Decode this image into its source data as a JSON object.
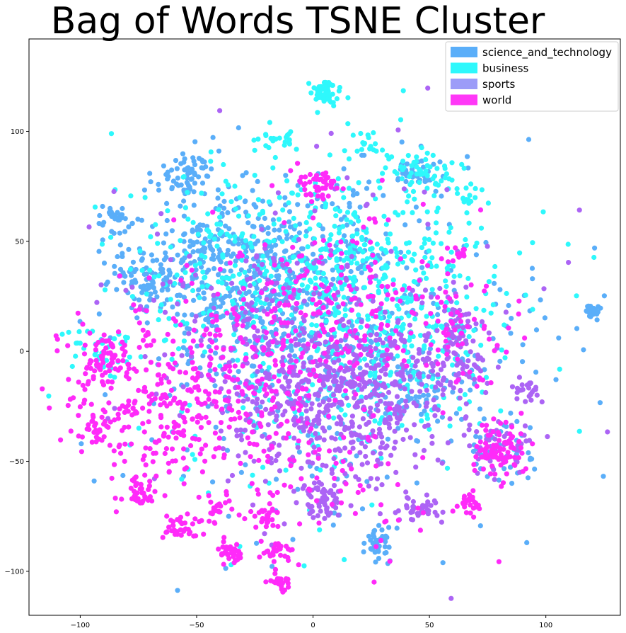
{
  "chart_data": {
    "type": "scatter",
    "title": "Bag of Words TSNE Cluster",
    "xlabel": "",
    "ylabel": "",
    "xlim": [
      -122,
      132
    ],
    "ylim": [
      -120,
      142
    ],
    "xticks": [
      -100,
      -50,
      0,
      50,
      100
    ],
    "yticks": [
      -100,
      -50,
      0,
      50,
      100
    ],
    "grid": false,
    "legend_position": "top-right",
    "series": [
      {
        "name": "science_and_technology",
        "color": "#5aaef9",
        "clusters": [
          {
            "cx": -55,
            "cy": 78,
            "sx": 7,
            "sy": 7,
            "n": 70
          },
          {
            "cx": -84,
            "cy": 60,
            "sx": 4,
            "sy": 3,
            "n": 35
          },
          {
            "cx": -63,
            "cy": 32,
            "sx": 7,
            "sy": 8,
            "n": 70
          },
          {
            "cx": -45,
            "cy": 48,
            "sx": 6,
            "sy": 6,
            "n": 55
          },
          {
            "cx": -80,
            "cy": 35,
            "sx": 6,
            "sy": 6,
            "n": 40
          },
          {
            "cx": -35,
            "cy": 25,
            "sx": 15,
            "sy": 20,
            "n": 190
          },
          {
            "cx": 0,
            "cy": 10,
            "sx": 30,
            "sy": 25,
            "n": 260
          },
          {
            "cx": 120,
            "cy": 18,
            "sx": 1.5,
            "sy": 1.5,
            "n": 28
          },
          {
            "cx": 28,
            "cy": -88,
            "sx": 3,
            "sy": 4,
            "n": 45
          },
          {
            "cx": 42,
            "cy": -18,
            "sx": 9,
            "sy": 8,
            "n": 60
          },
          {
            "cx": 5,
            "cy": 58,
            "sx": 20,
            "sy": 15,
            "n": 90
          },
          {
            "cx": 45,
            "cy": 82,
            "sx": 5,
            "sy": 4,
            "n": 35
          },
          {
            "cx": -15,
            "cy": 40,
            "sx": 15,
            "sy": 15,
            "n": 80
          },
          {
            "cx": 10,
            "cy": 0,
            "sx": 55,
            "sy": 45,
            "n": 220
          },
          {
            "cx": 80,
            "cy": -45,
            "sx": 8,
            "sy": 8,
            "n": 35
          }
        ]
      },
      {
        "name": "business",
        "color": "#2ef8fc",
        "clusters": [
          {
            "cx": 5,
            "cy": 118,
            "sx": 3,
            "sy": 3,
            "n": 60
          },
          {
            "cx": -15,
            "cy": 97,
            "sx": 5,
            "sy": 3,
            "n": 25
          },
          {
            "cx": 25,
            "cy": 93,
            "sx": 5,
            "sy": 5,
            "n": 20
          },
          {
            "cx": 45,
            "cy": 80,
            "sx": 8,
            "sy": 6,
            "n": 55
          },
          {
            "cx": 67,
            "cy": 70,
            "sx": 3,
            "sy": 3,
            "n": 15
          },
          {
            "cx": 20,
            "cy": 40,
            "sx": 28,
            "sy": 22,
            "n": 280
          },
          {
            "cx": -30,
            "cy": 40,
            "sx": 20,
            "sy": 20,
            "n": 150
          },
          {
            "cx": 30,
            "cy": 5,
            "sx": 25,
            "sy": 20,
            "n": 180
          },
          {
            "cx": -90,
            "cy": 0,
            "sx": 8,
            "sy": 6,
            "n": 40
          },
          {
            "cx": 5,
            "cy": 5,
            "sx": 50,
            "sy": 40,
            "n": 240
          }
        ]
      },
      {
        "name": "sports",
        "color": "#ac64f5",
        "clusters": [
          {
            "cx": 10,
            "cy": -25,
            "sx": 22,
            "sy": 18,
            "n": 320
          },
          {
            "cx": 30,
            "cy": -10,
            "sx": 18,
            "sy": 15,
            "n": 150
          },
          {
            "cx": 5,
            "cy": -68,
            "sx": 4,
            "sy": 5,
            "n": 60
          },
          {
            "cx": 45,
            "cy": -72,
            "sx": 4,
            "sy": 3,
            "n": 40
          },
          {
            "cx": 92,
            "cy": -18,
            "sx": 3,
            "sy": 3,
            "n": 25
          },
          {
            "cx": 62,
            "cy": 12,
            "sx": 6,
            "sy": 6,
            "n": 35
          },
          {
            "cx": 65,
            "cy": -8,
            "sx": 6,
            "sy": 6,
            "n": 35
          },
          {
            "cx": -20,
            "cy": 0,
            "sx": 20,
            "sy": 25,
            "n": 150
          },
          {
            "cx": 10,
            "cy": 0,
            "sx": 45,
            "sy": 40,
            "n": 200
          },
          {
            "cx": 80,
            "cy": -40,
            "sx": 8,
            "sy": 8,
            "n": 40
          }
        ]
      },
      {
        "name": "world",
        "color": "#ff2af9",
        "clusters": [
          {
            "cx": 2,
            "cy": 77,
            "sx": 5,
            "sy": 4,
            "n": 45
          },
          {
            "cx": -90,
            "cy": -3,
            "sx": 5,
            "sy": 5,
            "n": 55
          },
          {
            "cx": -60,
            "cy": -25,
            "sx": 25,
            "sy": 20,
            "n": 330
          },
          {
            "cx": -75,
            "cy": -65,
            "sx": 3,
            "sy": 3,
            "n": 30
          },
          {
            "cx": -57,
            "cy": -80,
            "sx": 4,
            "sy": 3,
            "n": 35
          },
          {
            "cx": -35,
            "cy": -92,
            "sx": 3,
            "sy": 3,
            "n": 35
          },
          {
            "cx": -14,
            "cy": -105,
            "sx": 2,
            "sy": 2,
            "n": 25
          },
          {
            "cx": -15,
            "cy": -92,
            "sx": 4,
            "sy": 3,
            "n": 30
          },
          {
            "cx": -20,
            "cy": -75,
            "sx": 3,
            "sy": 3,
            "n": 25
          },
          {
            "cx": -42,
            "cy": -72,
            "sx": 4,
            "sy": 3,
            "n": 25
          },
          {
            "cx": -92,
            "cy": -35,
            "sx": 3,
            "sy": 3,
            "n": 20
          },
          {
            "cx": 80,
            "cy": -45,
            "sx": 6,
            "sy": 6,
            "n": 90
          },
          {
            "cx": 67,
            "cy": -68,
            "sx": 3,
            "sy": 3,
            "n": 25
          },
          {
            "cx": -15,
            "cy": 0,
            "sx": 25,
            "sy": 20,
            "n": 170
          },
          {
            "cx": 10,
            "cy": 30,
            "sx": 30,
            "sy": 20,
            "n": 120
          },
          {
            "cx": 60,
            "cy": 10,
            "sx": 15,
            "sy": 15,
            "n": 60
          },
          {
            "cx": 10,
            "cy": -60,
            "sx": 25,
            "sy": 20,
            "n": 70
          },
          {
            "cx": 62,
            "cy": 45,
            "sx": 2,
            "sy": 2,
            "n": 10
          }
        ]
      }
    ]
  }
}
